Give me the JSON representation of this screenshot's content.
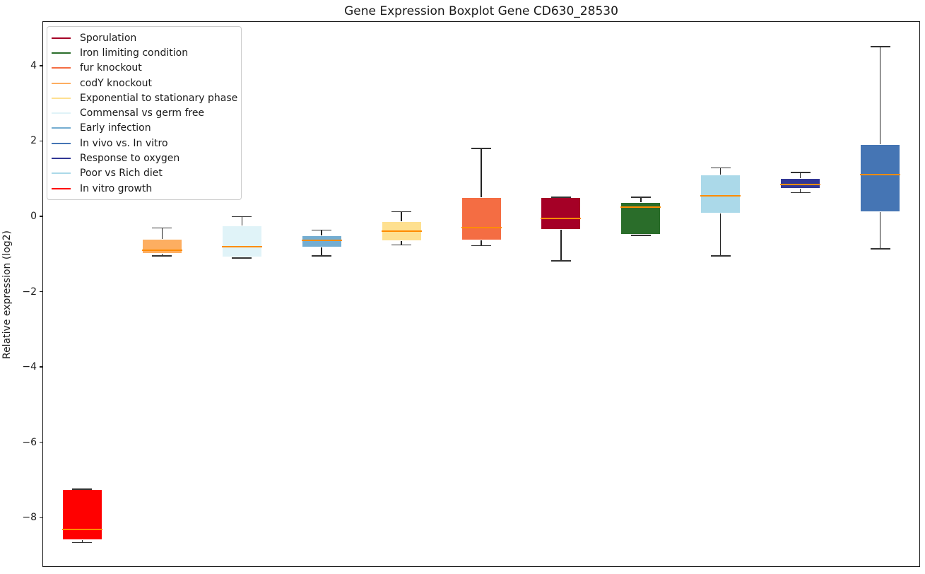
{
  "figure": {
    "title": "Gene Expression Boxplot Gene CD630_28530",
    "ylabel": "Relative expression (log2)"
  },
  "chart_data": {
    "type": "boxplot",
    "title": "Gene Expression Boxplot Gene CD630_28530",
    "xlabel": "",
    "ylabel": "Relative expression (log2)",
    "ylim": [
      -9.31,
      5.18
    ],
    "grid": false,
    "legend_position": "upper left",
    "yticks": [
      {
        "value": 4,
        "label": "4"
      },
      {
        "value": 2,
        "label": "2"
      },
      {
        "value": 0,
        "label": "0"
      },
      {
        "value": -2,
        "label": "−2"
      },
      {
        "value": -4,
        "label": "−4"
      },
      {
        "value": -6,
        "label": "−6"
      },
      {
        "value": -8,
        "label": "−8"
      }
    ],
    "colors": {
      "median_line": "#ff8c00",
      "whisker": "#222222",
      "box_edge": "#ffffff"
    },
    "legend": [
      {
        "label": "Sporulation",
        "color": "#a50026"
      },
      {
        "label": "Iron limiting condition",
        "color": "#2a6d2a"
      },
      {
        "label": "fur knockout",
        "color": "#f46d43"
      },
      {
        "label": "codY knockout",
        "color": "#fdae61"
      },
      {
        "label": "Exponential to stationary phase",
        "color": "#fee090"
      },
      {
        "label": "Commensal vs germ free",
        "color": "#e0f3f8"
      },
      {
        "label": "Early infection",
        "color": "#74add1"
      },
      {
        "label": "In vivo vs. In vitro",
        "color": "#4575b4"
      },
      {
        "label": "Response to oxygen",
        "color": "#313695"
      },
      {
        "label": "Poor vs Rich diet",
        "color": "#abd9e9"
      },
      {
        "label": "In vitro growth",
        "color": "#ff0000"
      }
    ],
    "series": [
      {
        "name": "In vitro growth",
        "color": "#ff0000",
        "whisker_low": -8.66,
        "q1": -8.6,
        "median": -8.31,
        "q3": -7.25,
        "whisker_high": -7.25
      },
      {
        "name": "codY knockout",
        "color": "#fdae61",
        "whisker_low": -1.05,
        "q1": -1.0,
        "median": -0.91,
        "q3": -0.61,
        "whisker_high": -0.31
      },
      {
        "name": "Commensal vs germ free",
        "color": "#e0f3f8",
        "whisker_low": -1.11,
        "q1": -1.09,
        "median": -0.8,
        "q3": -0.24,
        "whisker_high": -0.01
      },
      {
        "name": "Early infection",
        "color": "#74add1",
        "whisker_low": -1.05,
        "q1": -0.83,
        "median": -0.63,
        "q3": -0.51,
        "whisker_high": -0.37
      },
      {
        "name": "Exponential to stationary phase",
        "color": "#fee090",
        "whisker_low": -0.76,
        "q1": -0.66,
        "median": -0.4,
        "q3": -0.14,
        "whisker_high": 0.12
      },
      {
        "name": "fur knockout",
        "color": "#f46d43",
        "whisker_low": -0.78,
        "q1": -0.63,
        "median": -0.31,
        "q3": 0.51,
        "whisker_high": 1.8
      },
      {
        "name": "Sporulation",
        "color": "#a50026",
        "whisker_low": -1.18,
        "q1": -0.36,
        "median": -0.05,
        "q3": 0.51,
        "whisker_high": 0.51
      },
      {
        "name": "Iron limiting condition",
        "color": "#2a6d2a",
        "whisker_low": -0.51,
        "q1": -0.48,
        "median": 0.24,
        "q3": 0.38,
        "whisker_high": 0.51
      },
      {
        "name": "Poor vs Rich diet",
        "color": "#abd9e9",
        "whisker_low": -1.05,
        "q1": 0.08,
        "median": 0.54,
        "q3": 1.1,
        "whisker_high": 1.29
      },
      {
        "name": "Response to oxygen",
        "color": "#313695",
        "whisker_low": 0.63,
        "q1": 0.74,
        "median": 0.85,
        "q3": 1.01,
        "whisker_high": 1.16
      },
      {
        "name": "In vivo vs. In vitro",
        "color": "#4575b4",
        "whisker_low": -0.86,
        "q1": 0.11,
        "median": 1.1,
        "q3": 1.91,
        "whisker_high": 4.5
      }
    ]
  }
}
